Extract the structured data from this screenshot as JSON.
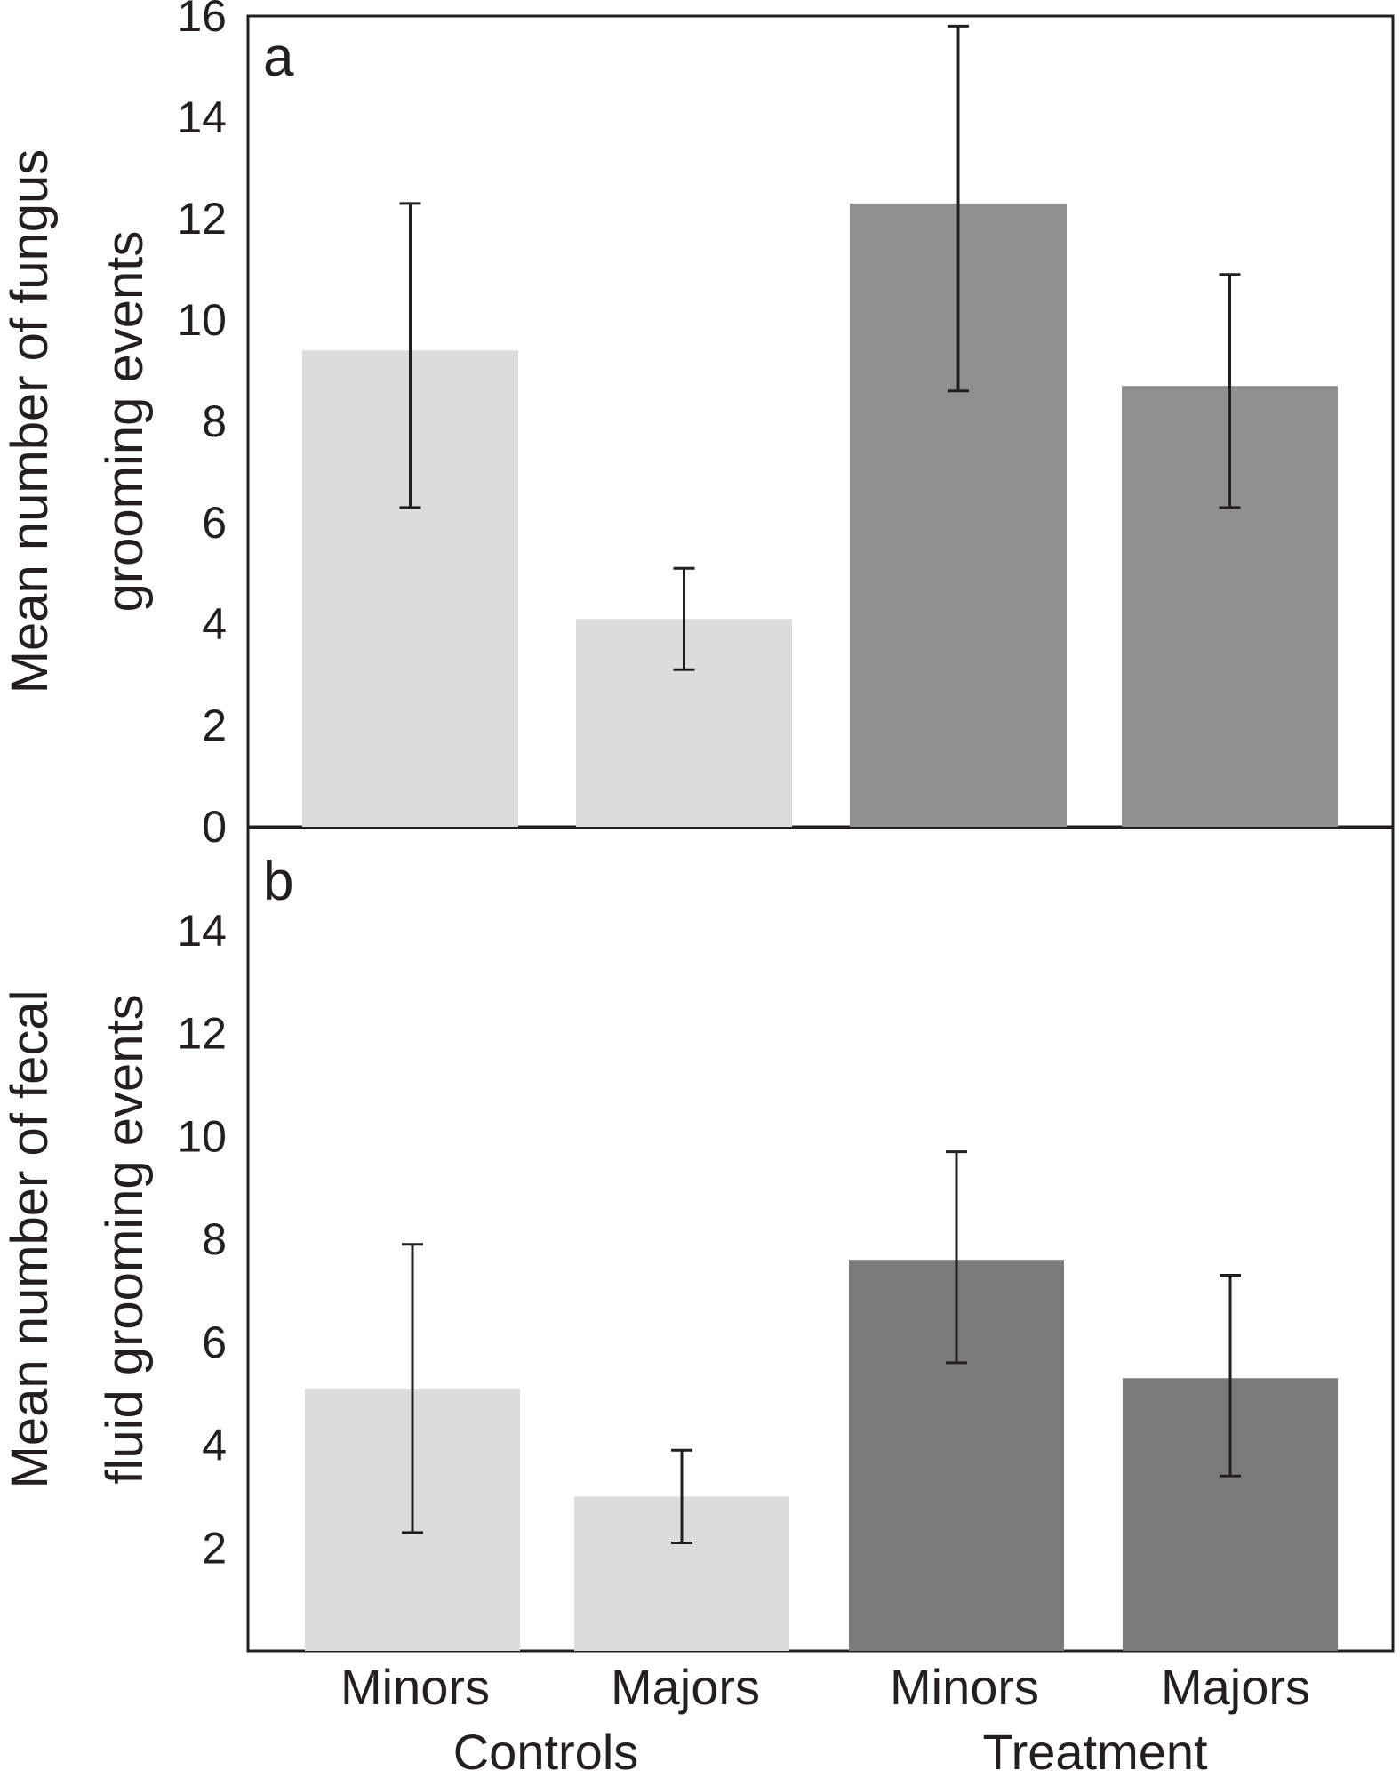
{
  "chart_data": [
    {
      "type": "bar",
      "panel_label": "a",
      "categories": [
        "Minors",
        "Majors",
        "Minors",
        "Majors"
      ],
      "groups": [
        "Controls",
        "Controls",
        "Treatment",
        "Treatment"
      ],
      "values": [
        9.4,
        4.1,
        12.3,
        8.7
      ],
      "error_low": [
        6.3,
        3.1,
        8.6,
        6.3
      ],
      "error_high": [
        12.3,
        5.1,
        15.8,
        10.9
      ],
      "colors": [
        "#dcdcdb",
        "#dcdcdb",
        "#919090",
        "#919090"
      ],
      "ylabel_line1": "Mean number of fungus",
      "ylabel_line2": "grooming events",
      "ylim": [
        0,
        16
      ],
      "yticks": [
        "0",
        "2",
        "4",
        "6",
        "8",
        "10",
        "12",
        "14",
        "16"
      ]
    },
    {
      "type": "bar",
      "panel_label": "b",
      "categories": [
        "Minors",
        "Majors",
        "Minors",
        "Majors"
      ],
      "groups": [
        "Controls",
        "Controls",
        "Treatment",
        "Treatment"
      ],
      "values": [
        5.1,
        3.0,
        7.6,
        5.3
      ],
      "error_low": [
        2.3,
        2.1,
        5.6,
        3.4
      ],
      "error_high": [
        7.9,
        3.9,
        9.7,
        7.3
      ],
      "colors": [
        "#dcdcdb",
        "#dcdcdb",
        "#7b7a7b",
        "#7b7a7b"
      ],
      "ylabel_line1": "Mean number of fecal",
      "ylabel_line2": "fluid grooming events",
      "ylim": [
        0,
        16
      ],
      "yticks": [
        "2",
        "4",
        "6",
        "8",
        "10",
        "12",
        "14"
      ]
    }
  ],
  "x_labels": [
    "Minors",
    "Majors",
    "Minors",
    "Majors"
  ],
  "group_labels": [
    "Controls",
    "Treatment"
  ]
}
